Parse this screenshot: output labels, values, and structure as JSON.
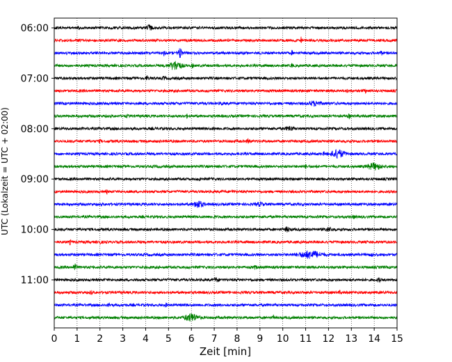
{
  "chart_data": {
    "type": "line",
    "title": "",
    "xlabel": "Zeit  [min]",
    "ylabel": "UTC (Lokalzeit = UTC + 02:00)",
    "xlim": [
      0,
      15
    ],
    "x_ticks": [
      0,
      1,
      2,
      3,
      4,
      5,
      6,
      7,
      8,
      9,
      10,
      11,
      12,
      13,
      14,
      15
    ],
    "y_tick_labels": [
      "06:00",
      "07:00",
      "08:00",
      "09:00",
      "10:00",
      "11:00"
    ],
    "y_tick_traces": [
      0,
      4,
      8,
      12,
      16,
      20
    ],
    "grid": true,
    "trace_colors": [
      "#000000",
      "#ff0000",
      "#0000ff",
      "#008000"
    ],
    "trace_minutes": 15,
    "trace_count": 24,
    "series": [
      {
        "start": "06:00",
        "events": [
          [
            4.15,
            2.2,
            0.12
          ],
          [
            1.05,
            0.8,
            0.05
          ]
        ]
      },
      {
        "start": "06:15",
        "events": [
          [
            10.8,
            3.0,
            0.02
          ],
          [
            2.9,
            0.8,
            0.03
          ]
        ]
      },
      {
        "start": "06:30",
        "events": [
          [
            5.5,
            4.5,
            0.08
          ],
          [
            4.8,
            2.5,
            0.05
          ],
          [
            10.4,
            2.0,
            0.03
          ],
          [
            14.3,
            1.6,
            0.06
          ]
        ]
      },
      {
        "start": "06:45",
        "events": [
          [
            5.3,
            4.5,
            0.25
          ],
          [
            10.4,
            2.5,
            0.03
          ],
          [
            6.05,
            1.5,
            0.05
          ]
        ]
      },
      {
        "start": "07:00",
        "events": [
          [
            4.05,
            2.5,
            0.04
          ],
          [
            4.8,
            1.5,
            0.06
          ]
        ]
      },
      {
        "start": "07:15",
        "events": [
          [
            13.6,
            2.2,
            0.04
          ],
          [
            12.8,
            1.5,
            0.05
          ]
        ]
      },
      {
        "start": "07:30",
        "events": [
          [
            11.4,
            2.0,
            0.25
          ],
          [
            7.3,
            1.5,
            0.04
          ]
        ]
      },
      {
        "start": "07:45",
        "events": [
          [
            12.9,
            2.5,
            0.03
          ],
          [
            5.8,
            1.5,
            0.03
          ],
          [
            3.2,
            1.0,
            0.05
          ]
        ]
      },
      {
        "start": "08:00",
        "events": [
          [
            10.3,
            2.0,
            0.15
          ],
          [
            7.0,
            1.0,
            0.05
          ]
        ]
      },
      {
        "start": "08:15",
        "events": [
          [
            8.5,
            1.5,
            0.08
          ],
          [
            2.0,
            1.0,
            0.05
          ]
        ]
      },
      {
        "start": "08:30",
        "events": [
          [
            12.4,
            4.0,
            0.28
          ],
          [
            11.8,
            1.0,
            0.05
          ]
        ]
      },
      {
        "start": "08:45",
        "events": [
          [
            14.0,
            3.0,
            0.3
          ],
          [
            11.0,
            1.5,
            0.05
          ]
        ]
      },
      {
        "start": "09:00",
        "events": [
          [
            6.4,
            1.2,
            0.05
          ]
        ]
      },
      {
        "start": "09:15",
        "events": [
          [
            2.3,
            1.5,
            0.03
          ],
          [
            7.8,
            1.2,
            0.04
          ]
        ]
      },
      {
        "start": "09:30",
        "events": [
          [
            6.3,
            3.5,
            0.18
          ],
          [
            9.0,
            1.5,
            0.15
          ]
        ]
      },
      {
        "start": "09:45",
        "events": [
          [
            13.1,
            1.5,
            0.04
          ],
          [
            7.0,
            1.0,
            0.04
          ]
        ]
      },
      {
        "start": "10:00",
        "events": [
          [
            10.2,
            2.0,
            0.1
          ],
          [
            12.0,
            1.5,
            0.15
          ]
        ]
      },
      {
        "start": "10:15",
        "events": [
          [
            0.7,
            2.0,
            0.03
          ],
          [
            2.0,
            1.2,
            0.05
          ]
        ]
      },
      {
        "start": "10:30",
        "events": [
          [
            11.2,
            3.5,
            0.45
          ],
          [
            13.9,
            1.5,
            0.05
          ]
        ]
      },
      {
        "start": "10:45",
        "events": [
          [
            0.9,
            3.5,
            0.06
          ],
          [
            8.8,
            1.5,
            0.05
          ]
        ]
      },
      {
        "start": "11:00",
        "events": [
          [
            14.2,
            2.2,
            0.05
          ],
          [
            7.1,
            1.5,
            0.1
          ]
        ]
      },
      {
        "start": "11:15",
        "events": [
          [
            1.6,
            2.0,
            0.04
          ],
          [
            12.5,
            1.2,
            0.05
          ]
        ]
      },
      {
        "start": "11:30",
        "events": [
          [
            2.4,
            1.5,
            0.05
          ],
          [
            4.9,
            1.5,
            0.04
          ]
        ]
      },
      {
        "start": "11:45",
        "events": [
          [
            6.0,
            3.5,
            0.3
          ],
          [
            9.6,
            2.0,
            0.04
          ]
        ]
      }
    ]
  }
}
